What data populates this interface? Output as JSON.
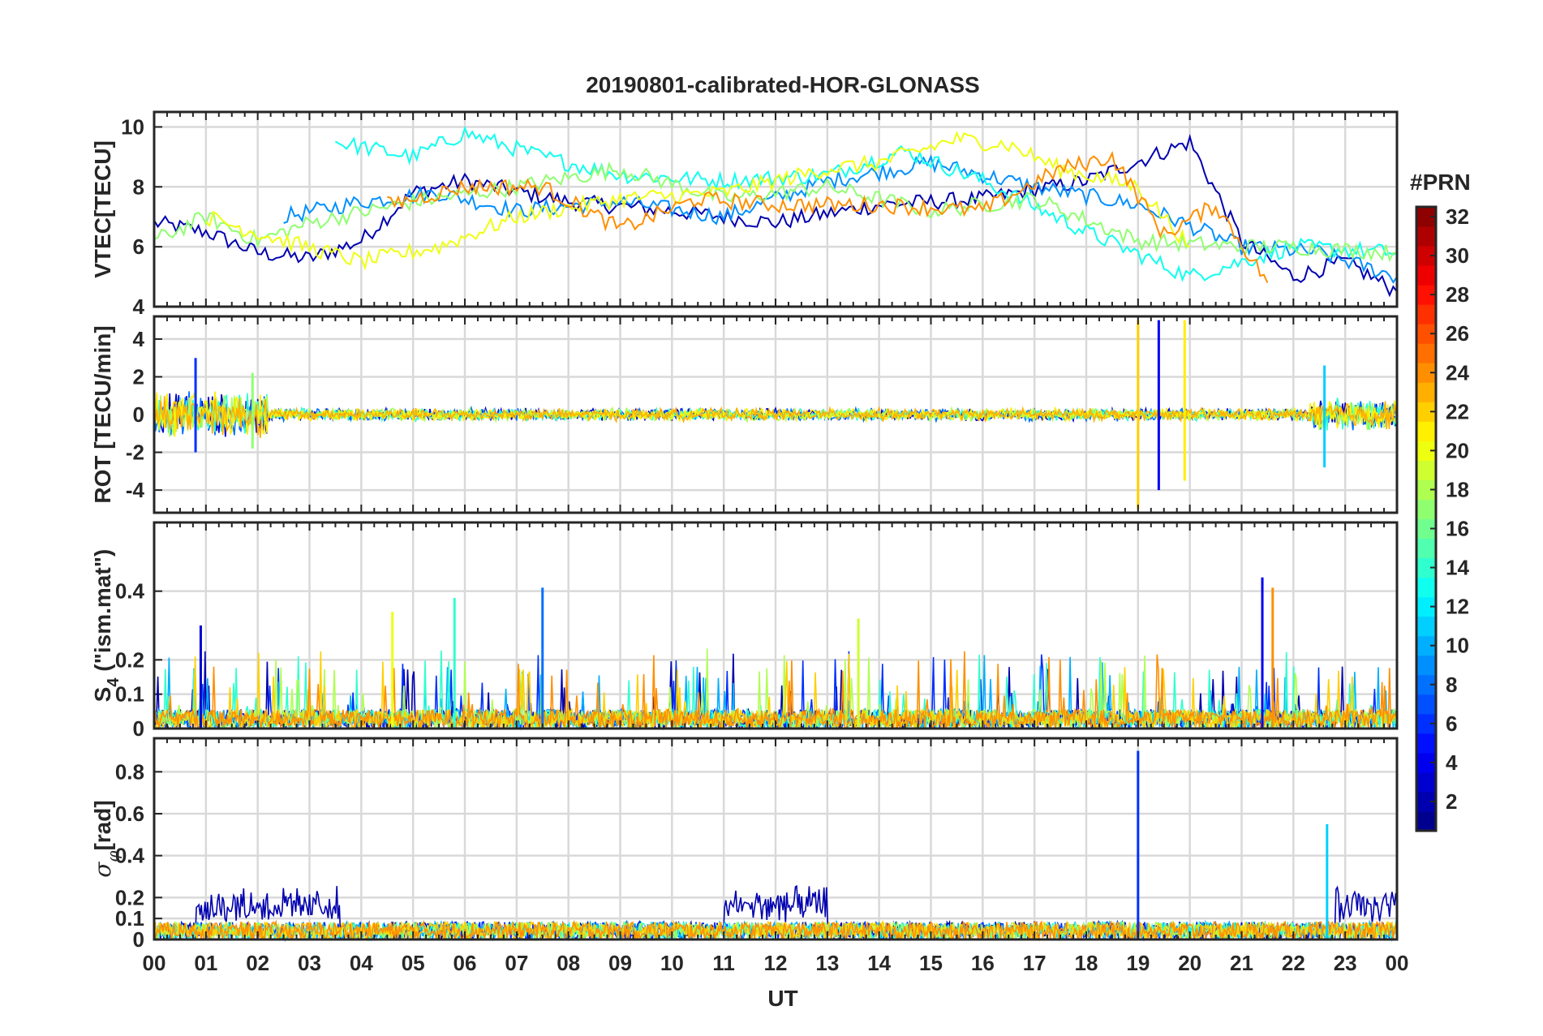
{
  "chart_data": {
    "title": "20190801-calibrated-HOR-GLONASS",
    "xlabel": "UT",
    "x_tick_labels": [
      "00",
      "01",
      "02",
      "03",
      "04",
      "05",
      "06",
      "07",
      "08",
      "09",
      "10",
      "11",
      "12",
      "13",
      "14",
      "15",
      "16",
      "17",
      "18",
      "19",
      "20",
      "21",
      "22",
      "23",
      "00"
    ],
    "colorbar": {
      "label": "#PRN",
      "colormap": "jet",
      "range": [
        1,
        32
      ],
      "levels": 32,
      "tick_labels": [
        "2",
        "4",
        "6",
        "8",
        "10",
        "12",
        "14",
        "16",
        "18",
        "20",
        "22",
        "24",
        "26",
        "28",
        "30",
        "32"
      ]
    },
    "grid": true,
    "panels": [
      {
        "type": "line",
        "ylabel": "VTEC[TECU]",
        "ylim": [
          4,
          10.5
        ],
        "y_tick_labels": [
          "4",
          "6",
          "8",
          "10"
        ],
        "series_summary": [
          {
            "prn_color_index": 2,
            "x_hours": [
              0,
              1,
              2,
              3,
              4,
              5,
              6,
              8,
              10,
              12,
              14,
              16,
              18,
              20,
              21,
              22,
              23,
              24
            ],
            "values": [
              6.8,
              6.5,
              5.8,
              5.6,
              6.2,
              7.8,
              8.2,
              7.5,
              7.2,
              6.8,
              7.4,
              7.6,
              8.2,
              9.5,
              6.2,
              5.0,
              5.5,
              4.5
            ]
          },
          {
            "prn_color_index": 9,
            "x_hours": [
              2.5,
              4,
              5.5,
              7,
              9,
              11,
              13,
              15,
              17,
              19,
              21,
              22.5,
              24
            ],
            "values": [
              7.0,
              7.5,
              7.8,
              7.2,
              7.5,
              7.0,
              8.2,
              8.8,
              8.0,
              7.4,
              6.0,
              5.8,
              5.0
            ]
          },
          {
            "prn_color_index": 13,
            "x_hours": [
              3.5,
              5,
              6,
              7.5,
              9,
              11,
              13,
              14.5,
              16,
              18,
              20,
              22,
              24
            ],
            "values": [
              9.5,
              9.0,
              9.8,
              9.0,
              8.4,
              8.2,
              8.4,
              9.2,
              8.2,
              6.5,
              5.0,
              6.0,
              5.8
            ]
          },
          {
            "prn_color_index": 17,
            "x_hours": [
              0,
              1,
              2,
              3,
              5,
              7,
              9,
              11,
              13,
              15,
              17,
              19,
              21,
              22,
              24
            ],
            "values": [
              6.2,
              7.0,
              6.2,
              6.8,
              7.5,
              8.0,
              8.6,
              7.6,
              8.0,
              7.2,
              7.6,
              6.2,
              6.0,
              6.0,
              5.8
            ]
          },
          {
            "prn_color_index": 20,
            "x_hours": [
              1,
              2.5,
              4,
              5.5,
              7,
              9,
              11,
              13,
              14,
              15.5,
              16.5,
              17.5,
              19,
              20
            ],
            "values": [
              7.0,
              6.2,
              5.5,
              6.0,
              7.0,
              7.6,
              7.8,
              8.6,
              8.8,
              9.6,
              9.4,
              8.6,
              8.0,
              6.0
            ]
          },
          {
            "prn_color_index": 24,
            "x_hours": [
              4.5,
              6,
              7.5,
              9,
              10.5,
              12,
              14,
              16,
              17.5,
              18.5,
              19.5,
              20.5,
              21.5
            ],
            "values": [
              7.4,
              8.0,
              8.0,
              6.6,
              7.6,
              7.4,
              7.4,
              7.2,
              8.6,
              9.0,
              6.4,
              7.4,
              4.8
            ]
          }
        ]
      },
      {
        "type": "line",
        "ylabel": "ROT [TECU/min]",
        "ylim": [
          -5.2,
          5.2
        ],
        "y_tick_labels": [
          "-4",
          "-2",
          "0",
          "2",
          "4"
        ],
        "spikes": [
          {
            "x_hours": 0.8,
            "min": -2.0,
            "max": 3.0
          },
          {
            "x_hours": 1.9,
            "min": -1.8,
            "max": 2.2
          },
          {
            "x_hours": 19.0,
            "min": -5.0,
            "max": 5.0
          },
          {
            "x_hours": 19.4,
            "min": -4.0,
            "max": 5.0
          },
          {
            "x_hours": 19.9,
            "min": -3.5,
            "max": 5.0
          },
          {
            "x_hours": 22.6,
            "min": -2.8,
            "max": 2.6
          }
        ]
      },
      {
        "type": "line",
        "ylabel": "S4 (\"ism.mat\")",
        "ylabel_main": "S",
        "ylabel_sub": "4",
        "ylabel_rest": " (\"ism.mat\")",
        "ylim": [
          0,
          0.6
        ],
        "y_tick_labels": [
          "0",
          "0.1",
          "0.2",
          "0.4"
        ],
        "peaks": [
          {
            "x_hours": 0.9,
            "value": 0.3
          },
          {
            "x_hours": 4.6,
            "value": 0.34
          },
          {
            "x_hours": 5.8,
            "value": 0.38
          },
          {
            "x_hours": 7.5,
            "value": 0.41
          },
          {
            "x_hours": 13.6,
            "value": 0.32
          },
          {
            "x_hours": 21.4,
            "value": 0.44
          },
          {
            "x_hours": 21.6,
            "value": 0.41
          }
        ]
      },
      {
        "type": "line",
        "ylabel": "σφ[rad]",
        "ylabel_main": "σ",
        "ylabel_sub": "φ",
        "ylabel_rest": "[rad]",
        "ylim": [
          0,
          0.96
        ],
        "y_tick_labels": [
          "0",
          "0.1",
          "0.2",
          "0.4",
          "0.6",
          "0.8"
        ],
        "peaks": [
          {
            "x_hours": 19.0,
            "value": 0.9
          },
          {
            "x_hours": 22.65,
            "value": 0.55
          }
        ]
      }
    ]
  }
}
